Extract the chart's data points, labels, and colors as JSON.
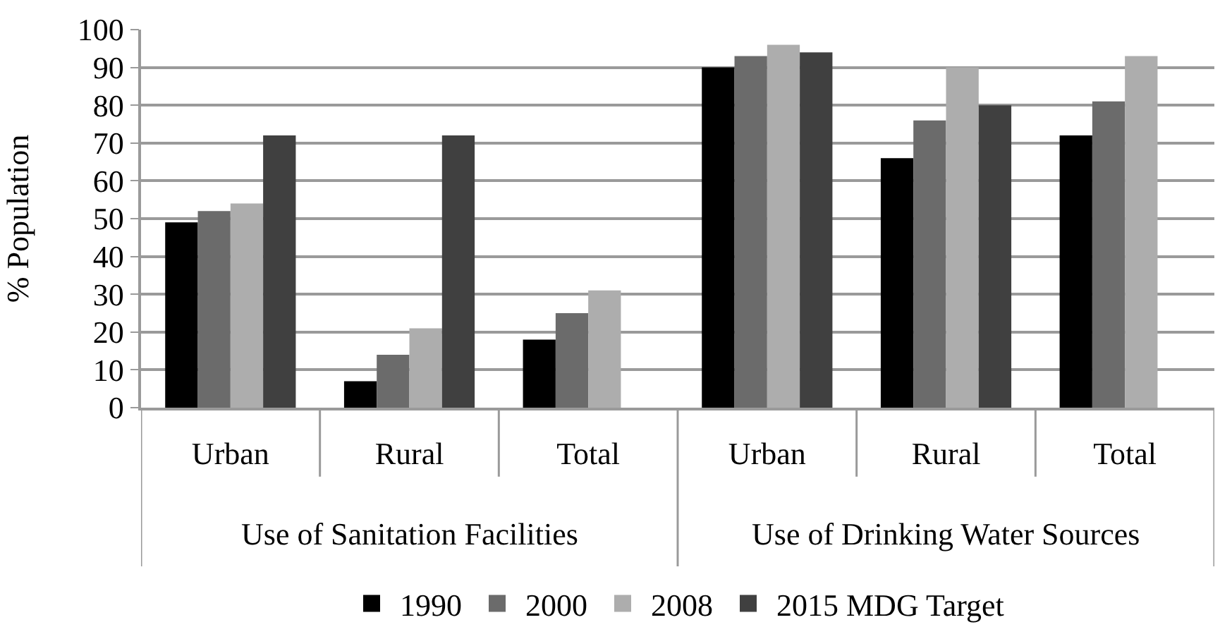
{
  "chart_data": {
    "type": "bar",
    "ylabel": "% Population",
    "categories": [
      "Urban",
      "Rural",
      "Total",
      "Urban",
      "Rural",
      "Total"
    ],
    "annotations": [
      "Use of Sanitation Facilities",
      "Use of Drinking Water Sources"
    ],
    "series": [
      {
        "name": "1990",
        "color": "#000000",
        "values": [
          49,
          7,
          18,
          90,
          66,
          72
        ]
      },
      {
        "name": "2000",
        "color": "#6b6b6b",
        "values": [
          52,
          14,
          25,
          93,
          76,
          81
        ]
      },
      {
        "name": "2008",
        "color": "#adadad",
        "values": [
          54,
          21,
          31,
          96,
          90,
          93
        ]
      },
      {
        "name": "2015 MDG Target",
        "color": "#404040",
        "values": [
          72,
          72,
          null,
          94,
          80,
          null
        ]
      }
    ],
    "ylim": [
      0,
      100
    ],
    "yticks": [
      0,
      10,
      20,
      30,
      40,
      50,
      60,
      70,
      80,
      90,
      100
    ],
    "grid": "y",
    "legend": "bottom"
  }
}
